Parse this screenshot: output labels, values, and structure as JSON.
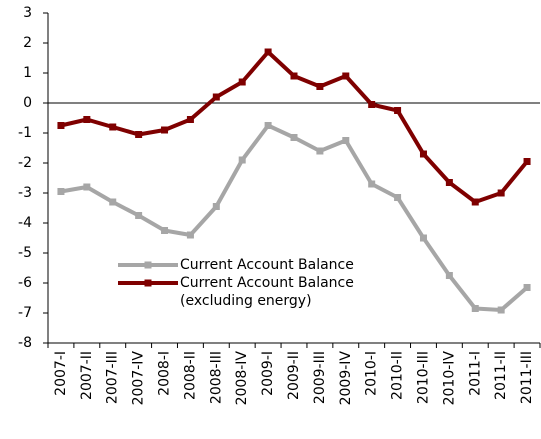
{
  "chart_data": {
    "type": "line",
    "categories": [
      "2007-I",
      "2007-II",
      "2007-III",
      "2007-IV",
      "2008-I",
      "2008-II",
      "2008-III",
      "2008-IV",
      "2009-I",
      "2009-II",
      "2009-III",
      "2009-IV",
      "2010-I",
      "2010-II",
      "2010-III",
      "2010-IV",
      "2011-I",
      "2011-II",
      "2011-III"
    ],
    "series": [
      {
        "name": "Current Account Balance",
        "color": "#a6a6a6",
        "values": [
          -2.95,
          -2.8,
          -3.3,
          -3.75,
          -4.25,
          -4.4,
          -3.45,
          -1.9,
          -0.75,
          -1.15,
          -1.6,
          -1.25,
          -2.7,
          -3.15,
          -4.5,
          -5.75,
          -6.85,
          -6.9,
          -6.15
        ]
      },
      {
        "name": "Current Account Balance (excluding energy)",
        "color": "#7f0000",
        "values": [
          -0.75,
          -0.55,
          -0.8,
          -1.05,
          -0.9,
          -0.55,
          0.2,
          0.7,
          1.7,
          0.9,
          0.55,
          0.9,
          -0.05,
          -0.25,
          -1.7,
          -2.65,
          -3.3,
          -3.0,
          -1.95
        ]
      }
    ],
    "ylim": [
      -8,
      3
    ],
    "yticks": [
      -8,
      -7,
      -6,
      -5,
      -4,
      -3,
      -2,
      -1,
      0,
      1,
      2,
      3
    ]
  }
}
